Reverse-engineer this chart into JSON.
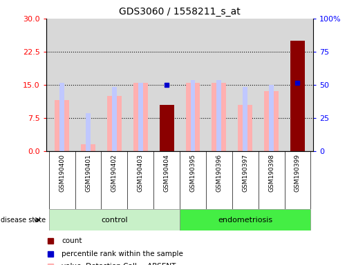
{
  "title": "GDS3060 / 1558211_s_at",
  "samples": [
    "GSM190400",
    "GSM190401",
    "GSM190402",
    "GSM190403",
    "GSM190404",
    "GSM190395",
    "GSM190396",
    "GSM190397",
    "GSM190398",
    "GSM190399"
  ],
  "n_control": 5,
  "n_endo": 5,
  "value_bars": [
    11.5,
    1.5,
    12.5,
    15.5,
    10.5,
    15.5,
    15.5,
    10.5,
    13.5,
    25.0
  ],
  "rank_bars": [
    15.5,
    8.5,
    14.5,
    15.5,
    null,
    16.0,
    16.0,
    14.5,
    15.0,
    15.5
  ],
  "count_bars": [
    null,
    null,
    null,
    null,
    10.5,
    null,
    null,
    null,
    null,
    25.0
  ],
  "percentile_markers": [
    null,
    null,
    null,
    null,
    15.0,
    null,
    null,
    null,
    null,
    15.5
  ],
  "left_ylim": [
    0,
    30
  ],
  "right_ylim": [
    0,
    100
  ],
  "left_yticks": [
    0,
    7.5,
    15,
    22.5,
    30
  ],
  "right_yticks": [
    0,
    25,
    50,
    75,
    100
  ],
  "right_yticklabels": [
    "0",
    "25",
    "50",
    "75",
    "100%"
  ],
  "value_bar_color": "#ffb0b0",
  "rank_bar_color": "#c0c8ff",
  "count_bar_color": "#8b0000",
  "percentile_marker_color": "#0000cc",
  "control_color": "#c8f0c8",
  "endo_color": "#44ee44",
  "plot_bg": "#d8d8d8",
  "bar_width": 0.55,
  "rank_bar_width": 0.18
}
